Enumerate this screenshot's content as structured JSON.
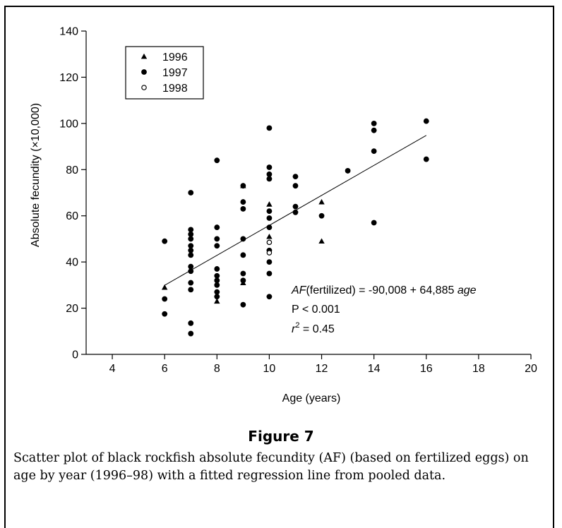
{
  "figure": {
    "title": "Figure 7",
    "caption": "Scatter plot of black rockfish absolute fecundity (AF) (based on fertilized eggs) on age by year (1996–98) with a fitted regression line from pooled data."
  },
  "chart_data": {
    "type": "scatter",
    "xlabel": "Age (years)",
    "ylabel": "Absolute fecundity (×10,000)",
    "xlim": [
      3,
      20
    ],
    "ylim": [
      0,
      140
    ],
    "xticks": [
      4,
      6,
      8,
      10,
      12,
      14,
      16,
      18,
      20
    ],
    "yticks": [
      0,
      20,
      40,
      60,
      80,
      100,
      120,
      140
    ],
    "grid": false,
    "legend_position": "top-left",
    "series": [
      {
        "name": "1996",
        "marker": "filled-triangle",
        "points": [
          [
            6,
            29
          ],
          [
            8,
            23
          ],
          [
            9,
            31
          ],
          [
            9,
            73
          ],
          [
            10,
            65
          ],
          [
            10,
            51
          ],
          [
            12,
            66
          ],
          [
            12,
            49
          ]
        ]
      },
      {
        "name": "1997",
        "marker": "filled-circle",
        "points": [
          [
            6,
            49
          ],
          [
            6,
            24
          ],
          [
            6,
            17.5
          ],
          [
            7,
            70
          ],
          [
            7,
            54
          ],
          [
            7,
            52
          ],
          [
            7,
            50
          ],
          [
            7,
            47
          ],
          [
            7,
            45
          ],
          [
            7,
            43
          ],
          [
            7,
            38
          ],
          [
            7,
            36
          ],
          [
            7,
            31
          ],
          [
            7,
            28
          ],
          [
            7,
            13.5
          ],
          [
            7,
            9
          ],
          [
            8,
            84
          ],
          [
            8,
            55
          ],
          [
            8,
            50
          ],
          [
            8,
            47
          ],
          [
            8,
            37
          ],
          [
            8,
            34
          ],
          [
            8,
            32
          ],
          [
            8,
            30
          ],
          [
            8,
            27
          ],
          [
            8,
            25
          ],
          [
            9,
            73
          ],
          [
            9,
            66
          ],
          [
            9,
            63
          ],
          [
            9,
            50
          ],
          [
            9,
            43
          ],
          [
            9,
            35
          ],
          [
            9,
            32
          ],
          [
            9,
            21.5
          ],
          [
            10,
            98
          ],
          [
            10,
            81
          ],
          [
            10,
            78
          ],
          [
            10,
            76
          ],
          [
            10,
            62
          ],
          [
            10,
            59
          ],
          [
            10,
            55
          ],
          [
            10,
            45
          ],
          [
            10,
            40
          ],
          [
            10,
            35
          ],
          [
            10,
            25
          ],
          [
            11,
            77
          ],
          [
            11,
            73
          ],
          [
            11,
            64
          ],
          [
            11,
            61.5
          ],
          [
            12,
            60
          ],
          [
            13,
            79.5
          ],
          [
            14,
            100
          ],
          [
            14,
            97
          ],
          [
            14,
            88
          ],
          [
            14,
            57
          ],
          [
            16,
            101
          ],
          [
            16,
            84.5
          ]
        ]
      },
      {
        "name": "1998",
        "marker": "open-circle",
        "points": [
          [
            10,
            48.5
          ],
          [
            10,
            44
          ]
        ]
      }
    ],
    "regression": {
      "x_range": [
        6,
        16
      ],
      "y_values": [
        29.9,
        94.8
      ],
      "annotation": {
        "equation_prefix": "AF",
        "equation_mid": "(fertilized) = -90,008 + 64,885 ",
        "equation_var": "age",
        "p_value": "P < 0.001",
        "r2_prefix": "r",
        "r2_exp": "2",
        "r2_value": " = 0.45"
      }
    }
  }
}
